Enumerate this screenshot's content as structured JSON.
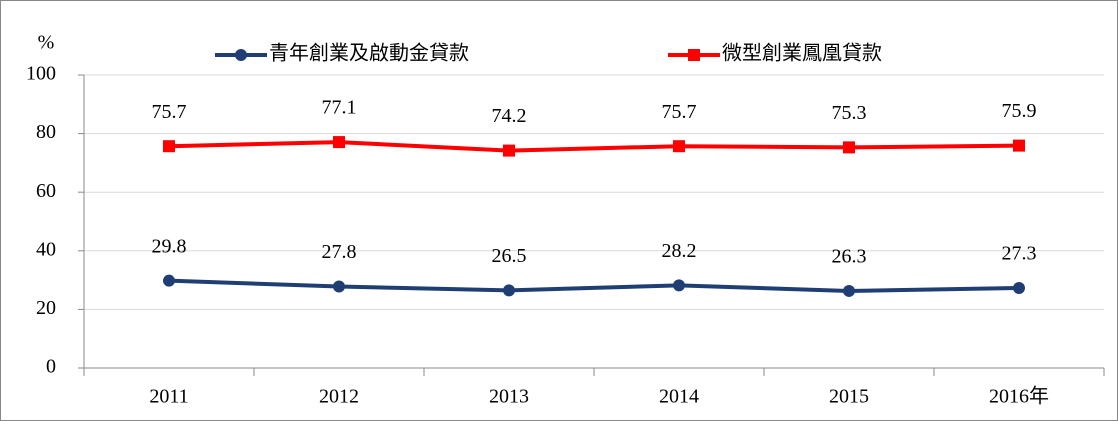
{
  "chart_data": {
    "type": "line",
    "y_label": "%",
    "categories": [
      "2011",
      "2012",
      "2013",
      "2014",
      "2015",
      "2016年"
    ],
    "series": [
      {
        "name": "青年創業及啟動金貸款",
        "color": "#1f3f74",
        "marker": "circle",
        "values": [
          29.8,
          27.8,
          26.5,
          28.2,
          26.3,
          27.3
        ]
      },
      {
        "name": "微型創業鳳凰貸款",
        "color": "#ff0000",
        "marker": "square",
        "values": [
          75.7,
          77.1,
          74.2,
          75.7,
          75.3,
          75.9
        ]
      }
    ],
    "ylim": [
      0,
      100
    ],
    "yticks": [
      0,
      20,
      40,
      60,
      80,
      100
    ],
    "grid": true,
    "data_labels": true
  }
}
